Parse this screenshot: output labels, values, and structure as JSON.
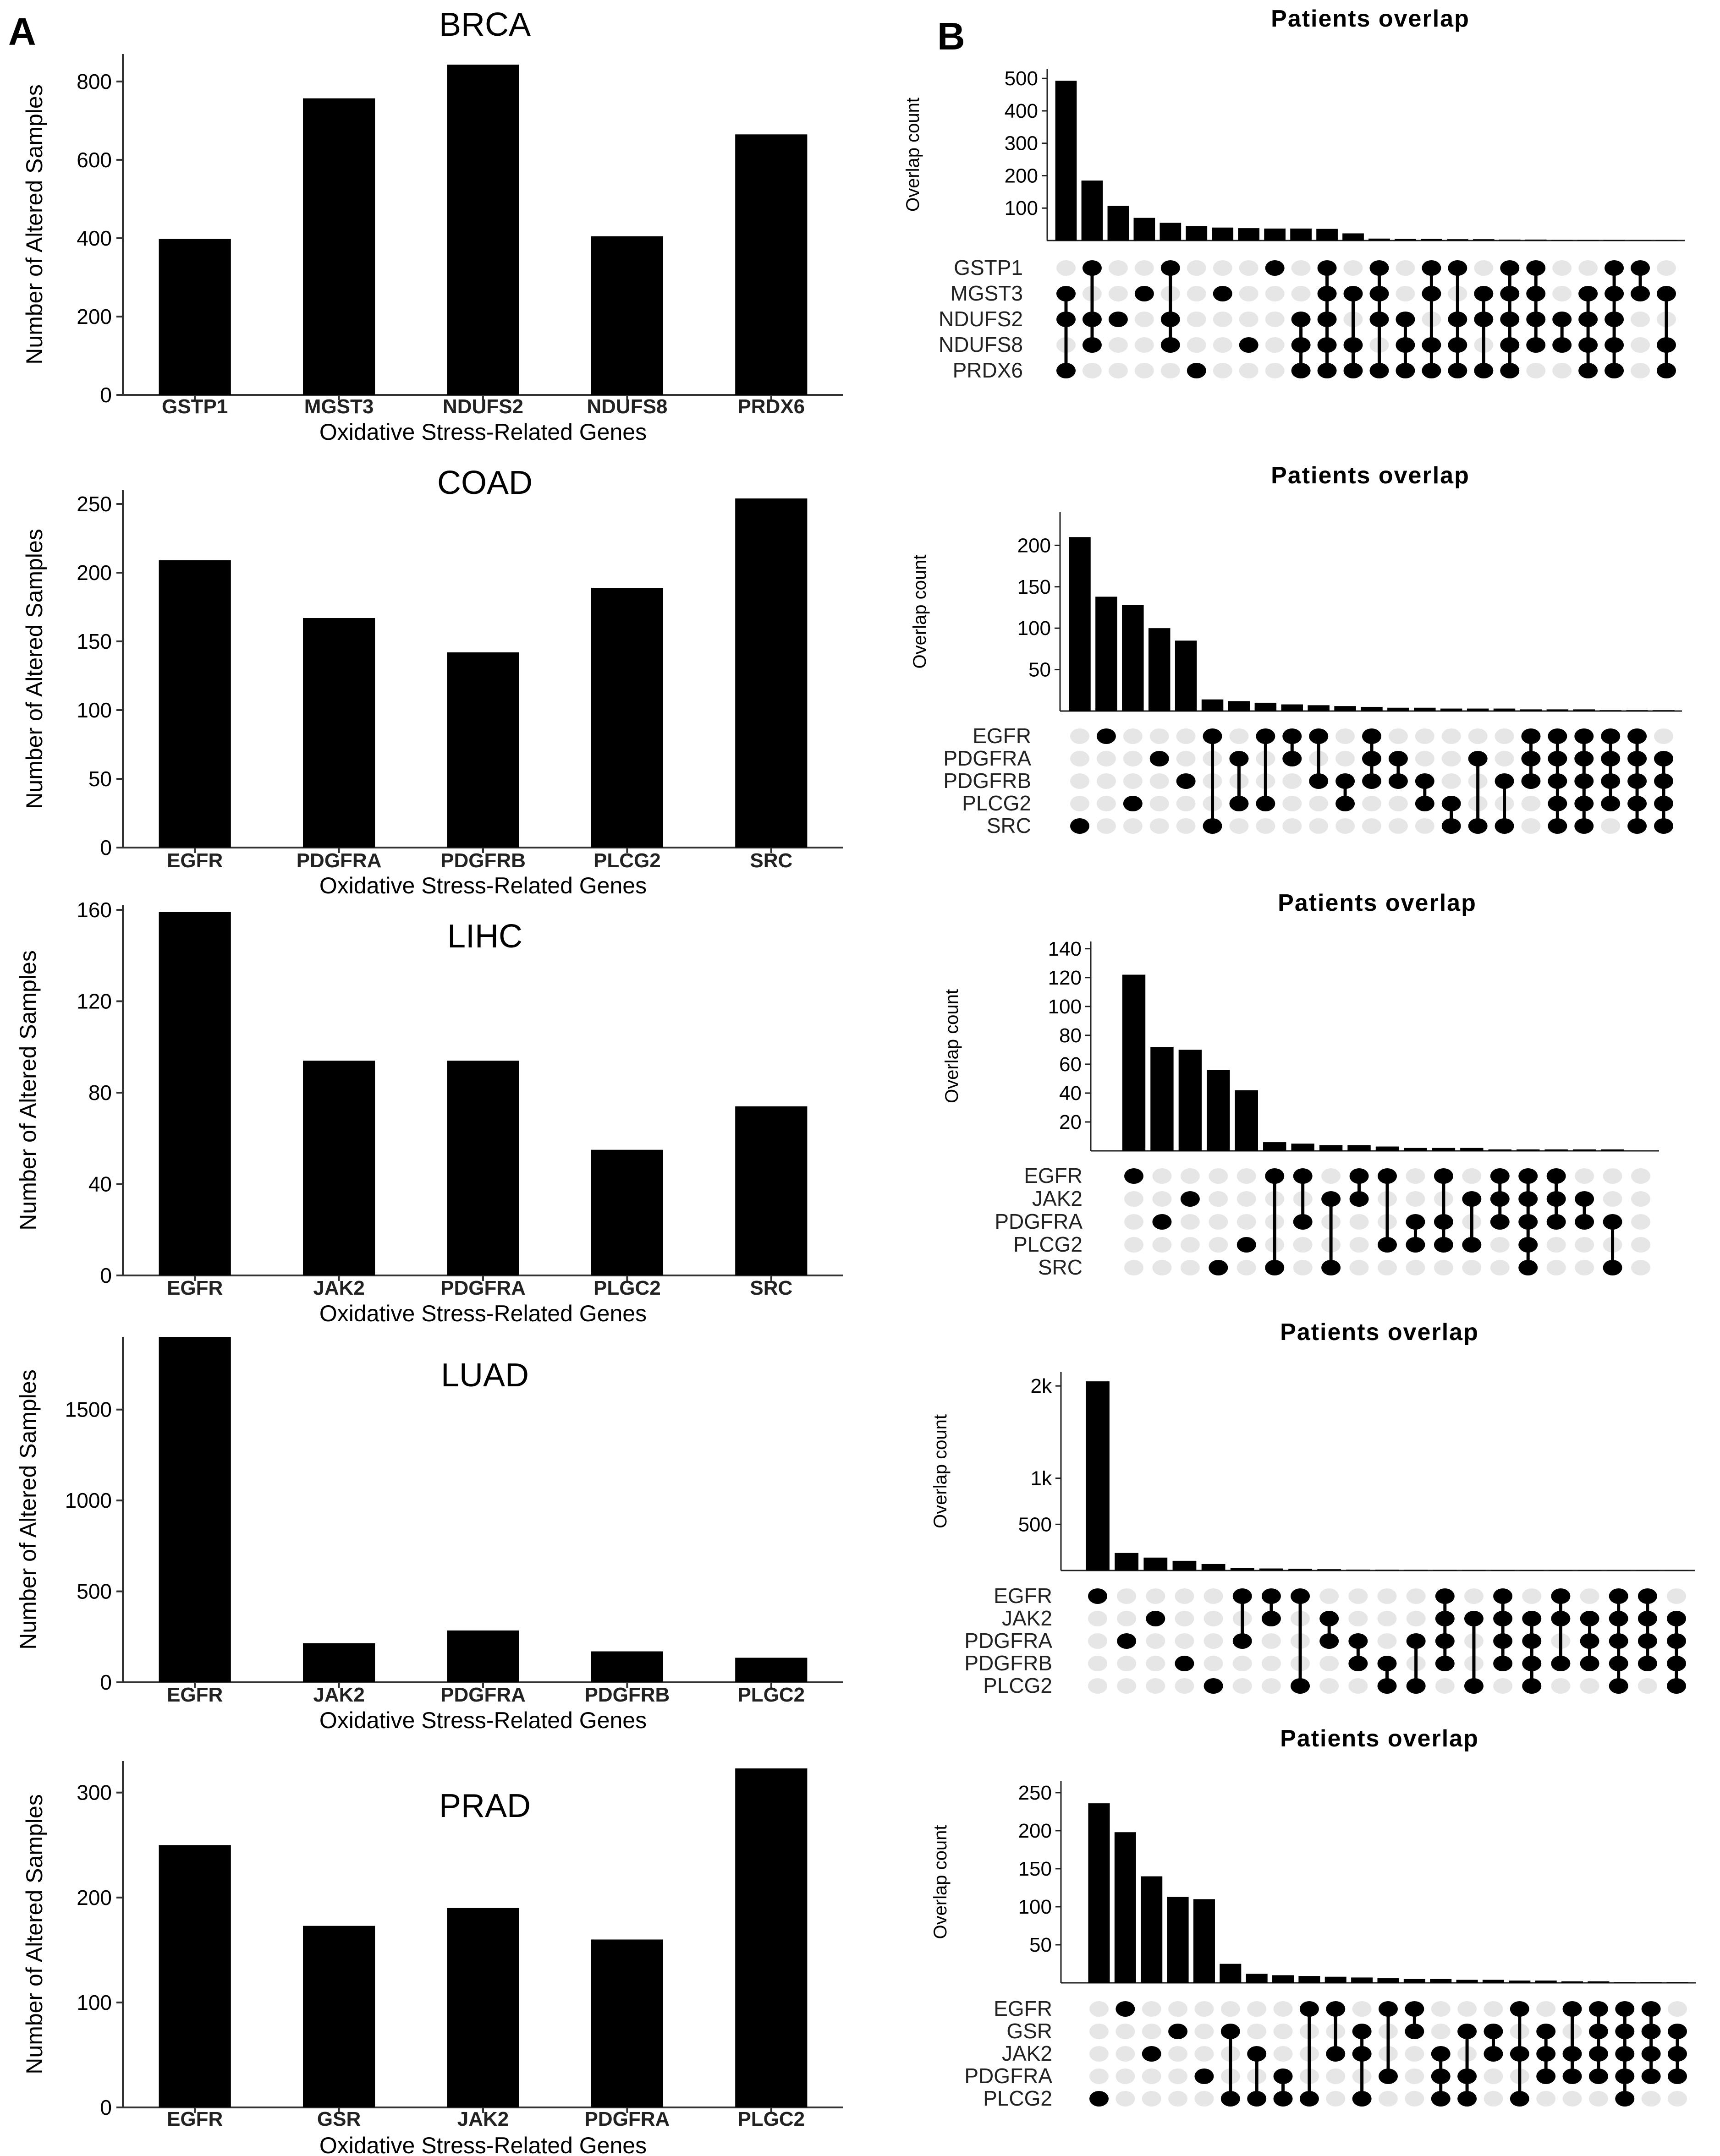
{
  "panel_labels": {
    "a": "A",
    "b": "B"
  },
  "chart_data": [
    {
      "type": "bar",
      "panel": "A",
      "title": "BRCA",
      "xlabel": "Oxidative Stress-Related Genes",
      "ylabel": "Number of Altered Samples",
      "categories": [
        "GSTP1",
        "MGST3",
        "NDUFS2",
        "NDUFS8",
        "PRDX6"
      ],
      "values": [
        398,
        757,
        843,
        405,
        665
      ],
      "ylim": [
        0,
        870
      ],
      "yticks": [
        0,
        200,
        400,
        600,
        800
      ]
    },
    {
      "type": "bar",
      "panel": "A",
      "title": "COAD",
      "xlabel": "Oxidative Stress-Related Genes",
      "ylabel": "Number of Altered Samples",
      "categories": [
        "EGFR",
        "PDGFRA",
        "PDGFRB",
        "PLCG2",
        "SRC"
      ],
      "values": [
        209,
        167,
        142,
        189,
        254
      ],
      "ylim": [
        0,
        260
      ],
      "yticks": [
        0,
        50,
        100,
        150,
        200,
        250
      ]
    },
    {
      "type": "bar",
      "panel": "A",
      "title": "LIHC",
      "xlabel": "Oxidative Stress-Related Genes",
      "ylabel": "Number of Altered Samples",
      "categories": [
        "EGFR",
        "JAK2",
        "PDGFRA",
        "PLGC2",
        "SRC"
      ],
      "values": [
        159,
        94,
        94,
        55,
        74
      ],
      "ylim": [
        0,
        162
      ],
      "yticks": [
        0,
        40,
        80,
        120,
        160
      ]
    },
    {
      "type": "bar",
      "panel": "A",
      "title": "LUAD",
      "xlabel": "Oxidative Stress-Related Genes",
      "ylabel": "Number of Altered Samples",
      "categories": [
        "EGFR",
        "JAK2",
        "PDGFRA",
        "PDGFRB",
        "PLGC2"
      ],
      "values": [
        1900,
        215,
        285,
        170,
        135
      ],
      "ylim": [
        0,
        1900
      ],
      "yticks": [
        0,
        500,
        1000,
        1500
      ]
    },
    {
      "type": "bar",
      "panel": "A",
      "title": "PRAD",
      "xlabel": "Oxidative Stress-Related Genes",
      "ylabel": "Number of Altered Samples",
      "categories": [
        "EGFR",
        "GSR",
        "JAK2",
        "PDGFRA",
        "PLGC2"
      ],
      "values": [
        250,
        173,
        190,
        160,
        323
      ],
      "ylim": [
        0,
        330
      ],
      "yticks": [
        0,
        100,
        200,
        300
      ]
    },
    {
      "type": "upset",
      "panel": "B",
      "title": "Patients overlap",
      "ylabel": "Overlap count",
      "sets": [
        "GSTP1",
        "MGST3",
        "NDUFS2",
        "NDUFS8",
        "PRDX6"
      ],
      "yticks": [
        {
          "v": 100,
          "l": "100"
        },
        {
          "v": 200,
          "l": "200"
        },
        {
          "v": 300,
          "l": "300"
        },
        {
          "v": 400,
          "l": "400"
        },
        {
          "v": 500,
          "l": "500"
        }
      ],
      "ymax": 530,
      "intersections": [
        {
          "count": 493,
          "members": [
            "MGST3",
            "NDUFS2",
            "PRDX6"
          ]
        },
        {
          "count": 185,
          "members": [
            "GSTP1",
            "NDUFS2",
            "NDUFS8"
          ]
        },
        {
          "count": 107,
          "members": [
            "NDUFS2"
          ]
        },
        {
          "count": 70,
          "members": [
            "MGST3"
          ]
        },
        {
          "count": 55,
          "members": [
            "GSTP1",
            "NDUFS2",
            "NDUFS8"
          ]
        },
        {
          "count": 45,
          "members": [
            "PRDX6"
          ]
        },
        {
          "count": 40,
          "members": [
            "MGST3"
          ]
        },
        {
          "count": 38,
          "members": [
            "NDUFS8"
          ]
        },
        {
          "count": 37,
          "members": [
            "GSTP1"
          ]
        },
        {
          "count": 37,
          "members": [
            "NDUFS2",
            "NDUFS8",
            "PRDX6"
          ]
        },
        {
          "count": 36,
          "members": [
            "GSTP1",
            "MGST3",
            "NDUFS2",
            "NDUFS8",
            "PRDX6"
          ]
        },
        {
          "count": 22,
          "members": [
            "MGST3",
            "NDUFS8",
            "PRDX6"
          ]
        },
        {
          "count": 6,
          "members": [
            "GSTP1",
            "MGST3",
            "NDUFS2",
            "PRDX6"
          ]
        },
        {
          "count": 5,
          "members": [
            "NDUFS2",
            "NDUFS8",
            "PRDX6"
          ]
        },
        {
          "count": 5,
          "members": [
            "GSTP1",
            "MGST3",
            "NDUFS8",
            "PRDX6"
          ]
        },
        {
          "count": 4,
          "members": [
            "GSTP1",
            "NDUFS2",
            "NDUFS8",
            "PRDX6"
          ]
        },
        {
          "count": 4,
          "members": [
            "MGST3",
            "NDUFS2",
            "PRDX6"
          ]
        },
        {
          "count": 3,
          "members": [
            "GSTP1",
            "MGST3",
            "NDUFS2",
            "NDUFS8",
            "PRDX6"
          ]
        },
        {
          "count": 3,
          "members": [
            "GSTP1",
            "MGST3",
            "NDUFS2",
            "NDUFS8"
          ]
        },
        {
          "count": 2,
          "members": [
            "NDUFS2",
            "NDUFS8"
          ]
        },
        {
          "count": 2,
          "members": [
            "MGST3",
            "NDUFS2",
            "NDUFS8",
            "PRDX6"
          ]
        },
        {
          "count": 2,
          "members": [
            "GSTP1",
            "MGST3",
            "NDUFS2",
            "NDUFS8",
            "PRDX6"
          ]
        },
        {
          "count": 1,
          "members": [
            "GSTP1",
            "MGST3"
          ]
        },
        {
          "count": 1,
          "members": [
            "MGST3",
            "NDUFS8",
            "PRDX6"
          ]
        }
      ]
    },
    {
      "type": "upset",
      "panel": "B",
      "title": "Patients overlap",
      "ylabel": "Overlap count",
      "sets": [
        "EGFR",
        "PDGFRA",
        "PDGFRB",
        "PLCG2",
        "SRC"
      ],
      "yticks": [
        {
          "v": 50,
          "l": "50"
        },
        {
          "v": 100,
          "l": "100"
        },
        {
          "v": 150,
          "l": "150"
        },
        {
          "v": 200,
          "l": "200"
        }
      ],
      "ymax": 240,
      "intersections": [
        {
          "count": 210,
          "members": [
            "SRC"
          ]
        },
        {
          "count": 138,
          "members": [
            "EGFR"
          ]
        },
        {
          "count": 128,
          "members": [
            "PLCG2"
          ]
        },
        {
          "count": 100,
          "members": [
            "PDGFRA"
          ]
        },
        {
          "count": 85,
          "members": [
            "PDGFRB"
          ]
        },
        {
          "count": 14,
          "members": [
            "EGFR",
            "SRC"
          ]
        },
        {
          "count": 12,
          "members": [
            "PDGFRA",
            "PLCG2"
          ]
        },
        {
          "count": 10,
          "members": [
            "EGFR",
            "PLCG2"
          ]
        },
        {
          "count": 8,
          "members": [
            "EGFR",
            "PDGFRA"
          ]
        },
        {
          "count": 7,
          "members": [
            "EGFR",
            "PDGFRB"
          ]
        },
        {
          "count": 6,
          "members": [
            "PDGFRB",
            "PLCG2"
          ]
        },
        {
          "count": 5,
          "members": [
            "EGFR",
            "PDGFRA",
            "PDGFRB"
          ]
        },
        {
          "count": 4,
          "members": [
            "PDGFRA",
            "PDGFRB"
          ]
        },
        {
          "count": 4,
          "members": [
            "PDGFRB",
            "PLCG2"
          ]
        },
        {
          "count": 3,
          "members": [
            "PLCG2",
            "SRC"
          ]
        },
        {
          "count": 3,
          "members": [
            "PDGFRA",
            "SRC"
          ]
        },
        {
          "count": 3,
          "members": [
            "PDGFRB",
            "SRC"
          ]
        },
        {
          "count": 2,
          "members": [
            "EGFR",
            "PDGFRA",
            "PDGFRB"
          ]
        },
        {
          "count": 2,
          "members": [
            "EGFR",
            "PDGFRA",
            "PDGFRB",
            "PLCG2",
            "SRC"
          ]
        },
        {
          "count": 2,
          "members": [
            "EGFR",
            "PDGFRA",
            "PDGFRB",
            "PLCG2",
            "SRC"
          ]
        },
        {
          "count": 1,
          "members": [
            "EGFR",
            "PDGFRA",
            "PDGFRB",
            "PLCG2"
          ]
        },
        {
          "count": 1,
          "members": [
            "EGFR",
            "PDGFRA",
            "PDGFRB",
            "PLCG2",
            "SRC"
          ]
        },
        {
          "count": 1,
          "members": [
            "PDGFRA",
            "PDGFRB",
            "PLCG2",
            "SRC"
          ]
        }
      ]
    },
    {
      "type": "upset",
      "panel": "B",
      "title": "Patients overlap",
      "ylabel": "Overlap count",
      "sets": [
        "EGFR",
        "JAK2",
        "PDGFRA",
        "PLCG2",
        "SRC"
      ],
      "yticks": [
        {
          "v": 20,
          "l": "20"
        },
        {
          "v": 40,
          "l": "40"
        },
        {
          "v": 60,
          "l": "60"
        },
        {
          "v": 80,
          "l": "80"
        },
        {
          "v": 100,
          "l": "100"
        },
        {
          "v": 120,
          "l": "120"
        },
        {
          "v": 140,
          "l": "140"
        }
      ],
      "ymax": 145,
      "intersections": [
        {
          "count": 122,
          "members": [
            "EGFR"
          ]
        },
        {
          "count": 72,
          "members": [
            "PDGFRA"
          ]
        },
        {
          "count": 70,
          "members": [
            "JAK2"
          ]
        },
        {
          "count": 56,
          "members": [
            "SRC"
          ]
        },
        {
          "count": 42,
          "members": [
            "PLCG2"
          ]
        },
        {
          "count": 6,
          "members": [
            "EGFR",
            "SRC"
          ]
        },
        {
          "count": 5,
          "members": [
            "EGFR",
            "PDGFRA"
          ]
        },
        {
          "count": 4,
          "members": [
            "JAK2",
            "SRC"
          ]
        },
        {
          "count": 4,
          "members": [
            "EGFR",
            "JAK2"
          ]
        },
        {
          "count": 3,
          "members": [
            "EGFR",
            "PLCG2"
          ]
        },
        {
          "count": 2,
          "members": [
            "PDGFRA",
            "PLCG2"
          ]
        },
        {
          "count": 2,
          "members": [
            "EGFR",
            "PDGFRA",
            "PLCG2"
          ]
        },
        {
          "count": 2,
          "members": [
            "JAK2",
            "PLCG2"
          ]
        },
        {
          "count": 1,
          "members": [
            "EGFR",
            "JAK2",
            "PDGFRA"
          ]
        },
        {
          "count": 1,
          "members": [
            "EGFR",
            "JAK2",
            "PDGFRA",
            "PLCG2",
            "SRC"
          ]
        },
        {
          "count": 1,
          "members": [
            "EGFR",
            "JAK2",
            "PDGFRA"
          ]
        },
        {
          "count": 1,
          "members": [
            "JAK2",
            "PDGFRA"
          ]
        },
        {
          "count": 1,
          "members": [
            "PDGFRA",
            "SRC"
          ]
        },
        {
          "count": 0,
          "members": []
        }
      ]
    },
    {
      "type": "upset",
      "panel": "B",
      "title": "Patients overlap",
      "ylabel": "Overlap count",
      "sets": [
        "EGFR",
        "JAK2",
        "PDGFRA",
        "PDGFRB",
        "PLCG2"
      ],
      "yticks": [
        {
          "v": 500,
          "l": "500"
        },
        {
          "v": 1000,
          "l": "1k"
        },
        {
          "v": 2000,
          "l": "2k"
        }
      ],
      "ymax": 2150,
      "intersections": [
        {
          "count": 2050,
          "members": [
            "EGFR"
          ]
        },
        {
          "count": 190,
          "members": [
            "PDGFRA"
          ]
        },
        {
          "count": 140,
          "members": [
            "JAK2"
          ]
        },
        {
          "count": 105,
          "members": [
            "PDGFRB"
          ]
        },
        {
          "count": 70,
          "members": [
            "PLCG2"
          ]
        },
        {
          "count": 28,
          "members": [
            "EGFR",
            "PDGFRA"
          ]
        },
        {
          "count": 22,
          "members": [
            "EGFR",
            "JAK2"
          ]
        },
        {
          "count": 18,
          "members": [
            "EGFR",
            "PLCG2"
          ]
        },
        {
          "count": 14,
          "members": [
            "JAK2",
            "PDGFRA"
          ]
        },
        {
          "count": 10,
          "members": [
            "PDGFRA",
            "PDGFRB"
          ]
        },
        {
          "count": 9,
          "members": [
            "PDGFRB",
            "PLCG2"
          ]
        },
        {
          "count": 8,
          "members": [
            "PDGFRA",
            "PLCG2"
          ]
        },
        {
          "count": 7,
          "members": [
            "EGFR",
            "JAK2",
            "PDGFRA",
            "PDGFRB"
          ]
        },
        {
          "count": 6,
          "members": [
            "JAK2",
            "PLCG2"
          ]
        },
        {
          "count": 5,
          "members": [
            "EGFR",
            "JAK2",
            "PDGFRA",
            "PDGFRB"
          ]
        },
        {
          "count": 5,
          "members": [
            "JAK2",
            "PDGFRA",
            "PDGFRB",
            "PLCG2"
          ]
        },
        {
          "count": 4,
          "members": [
            "EGFR",
            "JAK2",
            "PDGFRB"
          ]
        },
        {
          "count": 4,
          "members": [
            "JAK2",
            "PDGFRA",
            "PDGFRB"
          ]
        },
        {
          "count": 3,
          "members": [
            "EGFR",
            "JAK2",
            "PDGFRA",
            "PDGFRB",
            "PLCG2"
          ]
        },
        {
          "count": 3,
          "members": [
            "EGFR",
            "JAK2",
            "PDGFRA",
            "PDGFRB"
          ]
        },
        {
          "count": 2,
          "members": [
            "JAK2",
            "PDGFRA",
            "PDGFRB",
            "PLCG2"
          ]
        }
      ]
    },
    {
      "type": "upset",
      "panel": "B",
      "title": "Patients overlap",
      "ylabel": "Overlap count",
      "sets": [
        "EGFR",
        "GSR",
        "JAK2",
        "PDGFRA",
        "PLCG2"
      ],
      "yticks": [
        {
          "v": 50,
          "l": "50"
        },
        {
          "v": 100,
          "l": "100"
        },
        {
          "v": 150,
          "l": "150"
        },
        {
          "v": 200,
          "l": "200"
        },
        {
          "v": 250,
          "l": "250"
        }
      ],
      "ymax": 265,
      "intersections": [
        {
          "count": 236,
          "members": [
            "PLCG2"
          ]
        },
        {
          "count": 198,
          "members": [
            "EGFR"
          ]
        },
        {
          "count": 140,
          "members": [
            "JAK2"
          ]
        },
        {
          "count": 113,
          "members": [
            "GSR"
          ]
        },
        {
          "count": 110,
          "members": [
            "PDGFRA"
          ]
        },
        {
          "count": 25,
          "members": [
            "GSR",
            "PLCG2"
          ]
        },
        {
          "count": 12,
          "members": [
            "JAK2",
            "PLCG2"
          ]
        },
        {
          "count": 10,
          "members": [
            "PDGFRA",
            "PLCG2"
          ]
        },
        {
          "count": 9,
          "members": [
            "EGFR",
            "PLCG2"
          ]
        },
        {
          "count": 8,
          "members": [
            "EGFR",
            "JAK2"
          ]
        },
        {
          "count": 7,
          "members": [
            "GSR",
            "JAK2",
            "PLCG2"
          ]
        },
        {
          "count": 6,
          "members": [
            "EGFR",
            "PDGFRA"
          ]
        },
        {
          "count": 5,
          "members": [
            "EGFR",
            "GSR"
          ]
        },
        {
          "count": 5,
          "members": [
            "JAK2",
            "PDGFRA",
            "PLCG2"
          ]
        },
        {
          "count": 4,
          "members": [
            "GSR",
            "PDGFRA",
            "PLCG2"
          ]
        },
        {
          "count": 4,
          "members": [
            "GSR",
            "JAK2"
          ]
        },
        {
          "count": 3,
          "members": [
            "EGFR",
            "JAK2",
            "PLCG2"
          ]
        },
        {
          "count": 3,
          "members": [
            "GSR",
            "JAK2",
            "PDGFRA"
          ]
        },
        {
          "count": 2,
          "members": [
            "EGFR",
            "JAK2",
            "PDGFRA"
          ]
        },
        {
          "count": 2,
          "members": [
            "EGFR",
            "GSR",
            "JAK2",
            "PDGFRA"
          ]
        },
        {
          "count": 1,
          "members": [
            "EGFR",
            "GSR",
            "JAK2",
            "PDGFRA",
            "PLCG2"
          ]
        },
        {
          "count": 1,
          "members": [
            "EGFR",
            "GSR",
            "JAK2",
            "PDGFRA"
          ]
        },
        {
          "count": 1,
          "members": [
            "GSR",
            "JAK2",
            "PDGFRA"
          ]
        }
      ]
    }
  ]
}
